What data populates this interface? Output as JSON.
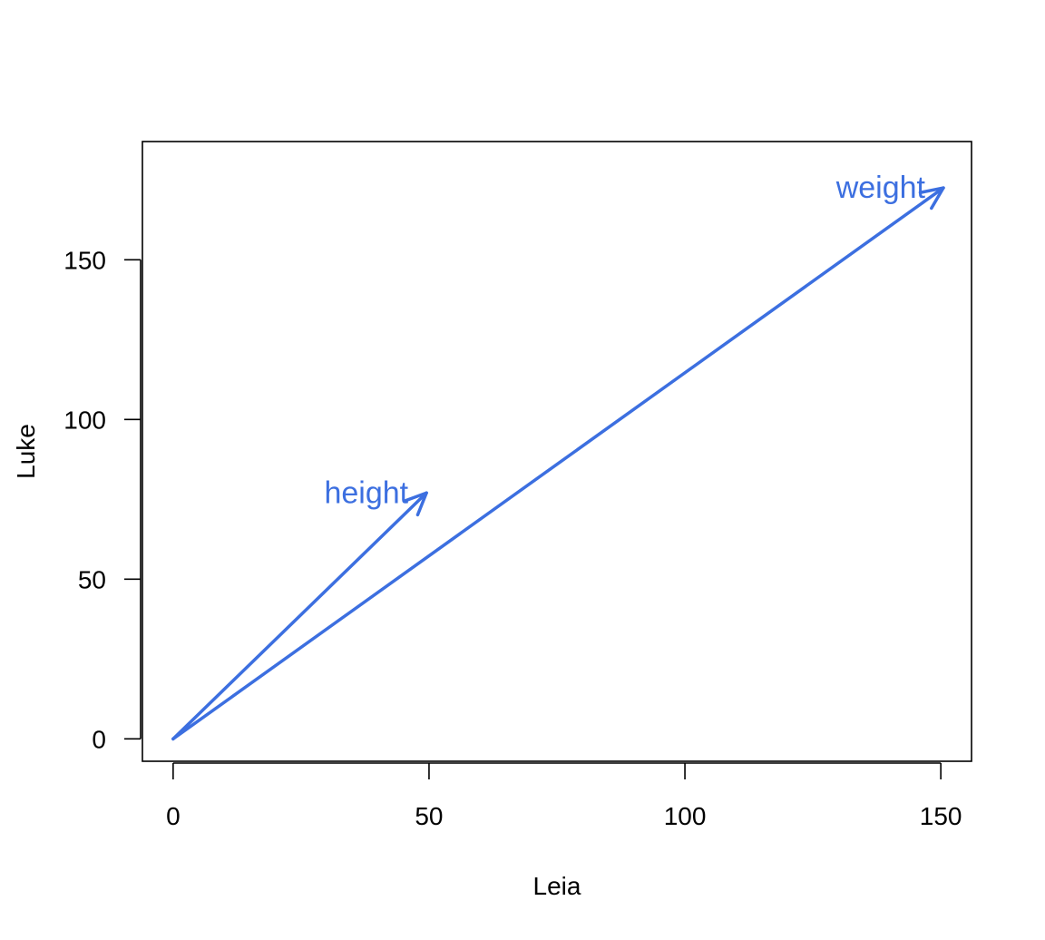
{
  "chart_data": {
    "type": "line",
    "title": "",
    "xlabel": "Leia",
    "ylabel": "Luke",
    "xlim": [
      -6,
      156
    ],
    "ylim": [
      -7,
      187
    ],
    "x_ticks": [
      0,
      50,
      100,
      150
    ],
    "y_ticks": [
      0,
      50,
      100,
      150
    ],
    "grid": false,
    "series": [
      {
        "name": "height",
        "x": [
          0,
          49.5
        ],
        "y": [
          0,
          77
        ]
      },
      {
        "name": "weight",
        "x": [
          0,
          150.5
        ],
        "y": [
          0,
          172.5
        ]
      }
    ],
    "annotations": [
      {
        "text": "height",
        "x": 49.5,
        "y": 77
      },
      {
        "text": "weight",
        "x": 150.5,
        "y": 172.5
      }
    ],
    "colors": {
      "vector": "#3c6fe0",
      "axis": "#000000"
    }
  }
}
